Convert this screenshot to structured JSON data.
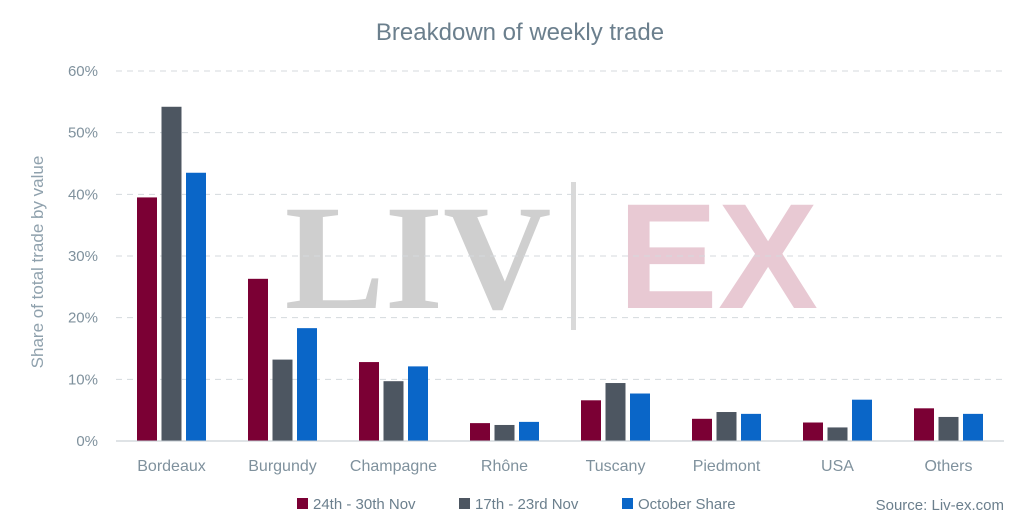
{
  "chart_data": {
    "type": "bar",
    "title": "Breakdown of weekly trade",
    "ylabel": "Share of total trade by value",
    "xlabel": "",
    "ylim": [
      0,
      60
    ],
    "yticks": [
      "0%",
      "10%",
      "20%",
      "30%",
      "40%",
      "50%",
      "60%"
    ],
    "categories": [
      "Bordeaux",
      "Burgundy",
      "Champagne",
      "Rhône",
      "Tuscany",
      "Piedmont",
      "USA",
      "Others"
    ],
    "series": [
      {
        "name": "24th - 30th Nov",
        "color": "#7b0034",
        "values": [
          39.5,
          26.3,
          12.8,
          2.9,
          6.6,
          3.6,
          3.0,
          5.3
        ]
      },
      {
        "name": "17th - 23rd Nov",
        "color": "#4d5661",
        "values": [
          54.2,
          13.2,
          9.7,
          2.6,
          9.4,
          4.7,
          2.2,
          3.9
        ]
      },
      {
        "name": "October Share",
        "color": "#0a66c8",
        "values": [
          43.5,
          18.3,
          12.1,
          3.1,
          7.7,
          4.4,
          6.7,
          4.4
        ]
      }
    ],
    "grid": true,
    "legend_position": "bottom-center",
    "source": "Source: Liv-ex.com",
    "watermark": {
      "left": "LIV",
      "right": "EX"
    }
  }
}
